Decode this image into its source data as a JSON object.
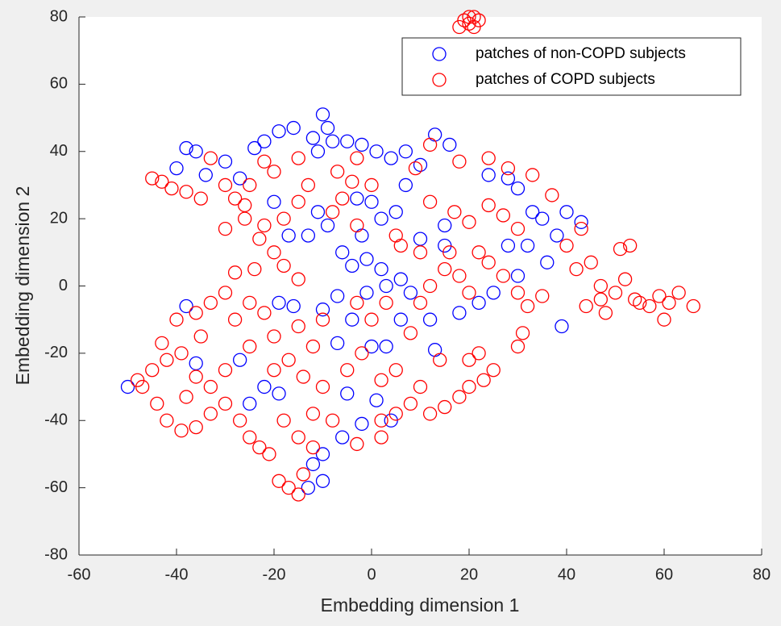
{
  "chart_data": {
    "type": "scatter",
    "xlabel": "Embedding dimension 1",
    "ylabel": "Embedding dimension 2",
    "xlim": [
      -60,
      80
    ],
    "ylim": [
      -80,
      80
    ],
    "xticks": [
      -60,
      -40,
      -20,
      0,
      20,
      40,
      60,
      80
    ],
    "yticks": [
      -80,
      -60,
      -40,
      -20,
      0,
      20,
      40,
      60,
      80
    ],
    "legend": "northeast",
    "series": [
      {
        "name": "patches of non-COPD subjects",
        "color": "#0000ff",
        "x": [
          -38,
          -36,
          -40,
          -34,
          -30,
          -27,
          -24,
          -22,
          -19,
          -16,
          -12,
          -10,
          -9,
          -8,
          -11,
          -5,
          -2,
          1,
          4,
          7,
          10,
          13,
          16,
          -20,
          -17,
          -13,
          -11,
          -9,
          -6,
          -4,
          -1,
          2,
          0,
          2,
          5,
          7,
          -2,
          3,
          6,
          -7,
          -10,
          -19,
          -16,
          -7,
          -4,
          0,
          3,
          6,
          12,
          13,
          22,
          25,
          18,
          30,
          32,
          35,
          38,
          40,
          43,
          36,
          24,
          28,
          30,
          33,
          28,
          39,
          -38,
          -36,
          -27,
          -25,
          -22,
          -19,
          -5,
          -2,
          1,
          -6,
          4,
          -12,
          -13,
          -10,
          -10,
          -50,
          -3,
          10,
          15,
          15,
          -1,
          8
        ],
        "y": [
          41,
          40,
          35,
          33,
          37,
          32,
          41,
          43,
          46,
          47,
          44,
          51,
          47,
          43,
          40,
          43,
          42,
          40,
          38,
          40,
          36,
          45,
          42,
          25,
          15,
          15,
          22,
          18,
          10,
          6,
          8,
          5,
          25,
          20,
          22,
          30,
          15,
          0,
          2,
          -3,
          -7,
          -5,
          -6,
          -17,
          -10,
          -18,
          -18,
          -10,
          -10,
          -19,
          -5,
          -2,
          -8,
          3,
          12,
          20,
          15,
          22,
          19,
          7,
          33,
          32,
          29,
          22,
          12,
          -12,
          -6,
          -23,
          -22,
          -35,
          -30,
          -32,
          -32,
          -41,
          -34,
          -45,
          -40,
          -53,
          -60,
          -58,
          -50,
          -30,
          26,
          14,
          12,
          18,
          -2,
          -2
        ]
      },
      {
        "name": "patches of COPD subjects",
        "color": "#ff0000",
        "x": [
          20,
          19,
          21,
          20,
          22,
          18,
          21,
          -45,
          -43,
          -41,
          -38,
          -35,
          -33,
          -30,
          -28,
          -26,
          -22,
          -20,
          -15,
          -13,
          -7,
          -4,
          -3,
          -6,
          -15,
          -18,
          -22,
          -26,
          -30,
          -23,
          -20,
          -28,
          -24,
          -18,
          -15,
          -30,
          -25,
          -22,
          -28,
          -33,
          -36,
          -40,
          -43,
          -42,
          -39,
          -36,
          -33,
          -30,
          -45,
          -47,
          -44,
          -42,
          -39,
          -36,
          -33,
          -30,
          -38,
          -27,
          -25,
          -23,
          -21,
          -19,
          -17,
          -15,
          -14,
          -12,
          -15,
          -18,
          -20,
          -17,
          -14,
          -12,
          -10,
          -15,
          -20,
          -25,
          -10,
          -8,
          -3,
          2,
          5,
          8,
          10,
          12,
          15,
          18,
          20,
          23,
          25,
          22,
          20,
          30,
          31,
          2,
          5,
          0,
          3,
          8,
          10,
          12,
          15,
          18,
          20,
          24,
          27,
          30,
          32,
          35,
          42,
          45,
          47,
          50,
          48,
          52,
          54,
          57,
          59,
          61,
          63,
          66,
          60,
          55,
          51,
          53,
          47,
          44,
          43,
          40,
          37,
          33,
          28,
          24,
          18,
          12,
          9,
          12,
          17,
          20,
          24,
          27,
          30,
          22,
          16,
          10,
          6,
          -3,
          0,
          -8,
          -2,
          -5,
          -12,
          -25,
          -3,
          5,
          14,
          2,
          -35,
          -48
        ],
        "y": [
          78,
          79,
          77,
          80,
          79,
          77,
          80,
          32,
          31,
          29,
          28,
          26,
          38,
          30,
          26,
          24,
          37,
          34,
          38,
          30,
          34,
          31,
          38,
          26,
          25,
          20,
          18,
          20,
          17,
          14,
          10,
          4,
          5,
          6,
          2,
          -2,
          -5,
          -8,
          -10,
          -5,
          -8,
          -10,
          -17,
          -22,
          -20,
          -27,
          -30,
          -25,
          -25,
          -30,
          -35,
          -40,
          -43,
          -42,
          -38,
          -35,
          -33,
          -40,
          -45,
          -48,
          -50,
          -58,
          -60,
          -62,
          -56,
          -48,
          -45,
          -40,
          -25,
          -22,
          -27,
          -18,
          -10,
          -12,
          -15,
          -18,
          -30,
          -40,
          -47,
          -45,
          -38,
          -35,
          -30,
          -38,
          -36,
          -33,
          -30,
          -28,
          -25,
          -20,
          -22,
          -18,
          -14,
          -28,
          -25,
          -10,
          -5,
          -14,
          -5,
          0,
          5,
          3,
          -2,
          7,
          3,
          -2,
          -6,
          -3,
          5,
          7,
          -4,
          -2,
          -8,
          2,
          -4,
          -6,
          -3,
          -5,
          -2,
          -6,
          -10,
          -5,
          11,
          12,
          0,
          -6,
          17,
          12,
          27,
          33,
          35,
          38,
          37,
          42,
          35,
          25,
          22,
          19,
          24,
          21,
          17,
          10,
          10,
          10,
          12,
          18,
          30,
          22,
          -20,
          -25,
          -38,
          30,
          -5,
          15,
          -22,
          -40,
          -15,
          -28
        ]
      }
    ]
  }
}
